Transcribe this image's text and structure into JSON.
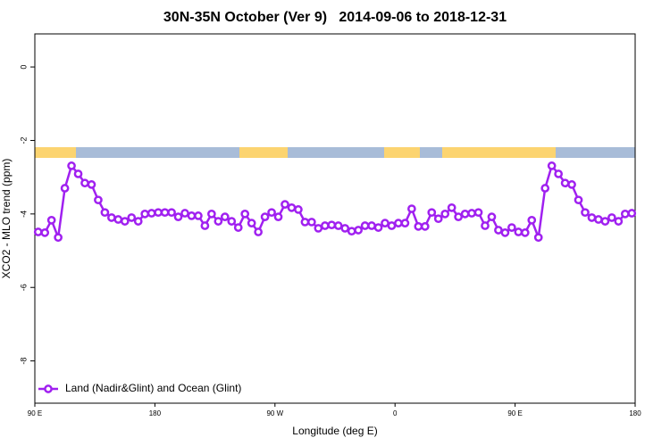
{
  "chart_data": {
    "type": "line",
    "title": "30N-35N October (Ver 9)   2014-09-06 to 2018-12-31",
    "x_label": "Longitude (deg E)",
    "y_label": "XCO2 - MLO trend (ppm)",
    "x": [
      92.5,
      97.5,
      102.5,
      107.5,
      112.5,
      117.5,
      122.5,
      127.5,
      132.5,
      137.5,
      142.5,
      147.5,
      152.5,
      157.5,
      162.5,
      167.5,
      172.5,
      177.5,
      182.5,
      187.5,
      192.5,
      197.5,
      202.5,
      207.5,
      212.5,
      217.5,
      222.5,
      227.5,
      232.5,
      237.5,
      242.5,
      247.5,
      252.5,
      257.5,
      262.5,
      267.5,
      272.5,
      277.5,
      282.5,
      287.5,
      292.5,
      297.5,
      302.5,
      307.5,
      312.5,
      317.5,
      322.5,
      327.5,
      332.5,
      337.5,
      342.5,
      347.5,
      352.5,
      357.5,
      362.5,
      367.5,
      372.5,
      377.5,
      382.5,
      387.5,
      392.5,
      397.5,
      402.5,
      407.5,
      412.5,
      417.5,
      422.5,
      427.5,
      432.5,
      437.5,
      442.5,
      447.5,
      452.5,
      457.5,
      462.5,
      467.5,
      472.5,
      477.5,
      482.5,
      487.5,
      492.5,
      497.5,
      502.5,
      507.5,
      512.5,
      517.5,
      522.5,
      527.5,
      532.5,
      537.5
    ],
    "series": [
      {
        "name": "Land (Nadir&Glint) and Ocean (Glint)",
        "color": "#a020f0",
        "values": [
          -4.49,
          -4.51,
          -4.17,
          -4.64,
          -3.3,
          -2.69,
          -2.91,
          -3.16,
          -3.2,
          -3.62,
          -3.96,
          -4.1,
          -4.15,
          -4.2,
          -4.1,
          -4.2,
          -4.0,
          -3.98,
          -3.96,
          -3.96,
          -3.96,
          -4.08,
          -3.98,
          -4.05,
          -4.05,
          -4.32,
          -4.0,
          -4.2,
          -4.08,
          -4.2,
          -4.37,
          -4.0,
          -4.25,
          -4.49,
          -4.08,
          -3.96,
          -4.08,
          -3.74,
          -3.83,
          -3.88,
          -4.22,
          -4.22,
          -4.39,
          -4.32,
          -4.3,
          -4.32,
          -4.39,
          -4.47,
          -4.44,
          -4.32,
          -4.32,
          -4.37,
          -4.25,
          -4.32,
          -4.25,
          -4.25,
          -3.86,
          -4.34,
          -4.34,
          -3.96,
          -4.13,
          -4.0,
          -3.83,
          -4.08,
          -4.0,
          -3.98,
          -3.96,
          -4.32,
          -4.08,
          -4.44,
          -4.51,
          -4.37,
          -4.49,
          -4.51,
          -4.17,
          -4.64,
          -3.3,
          -2.69,
          -2.91,
          -3.16,
          -3.2,
          -3.62,
          -3.96,
          -4.1,
          -4.15,
          -4.2,
          -4.1,
          -4.2,
          -4.0,
          -3.98
        ]
      }
    ],
    "xlim": [
      90,
      540
    ],
    "xticks": [
      {
        "value": 90,
        "label": "90 E"
      },
      180,
      {
        "value": 270,
        "label": "90 W"
      },
      {
        "value": 360,
        "label": "0"
      },
      {
        "value": 450,
        "label": "90 E"
      },
      {
        "value": 540,
        "label": "180"
      }
    ],
    "ylim": [
      -9.15,
      0.9
    ],
    "yticks": [
      0,
      -2,
      -4,
      -6,
      -8
    ],
    "legend": "bottom-left"
  }
}
